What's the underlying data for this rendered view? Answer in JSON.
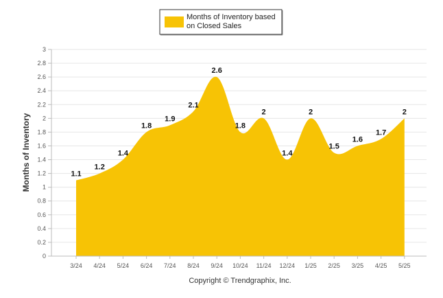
{
  "legend": {
    "line1": "Months of Inventory based",
    "line2": "on Closed Sales"
  },
  "footer": {
    "copyright": "Copyright © Trendgraphix, Inc."
  },
  "colors": {
    "series_fill": "#f7c305",
    "grid": "#e6e6e6",
    "axis": "#bbbbbb"
  },
  "chart_data": {
    "type": "area",
    "ylabel": "Months of Inventory",
    "xlabel": "",
    "ylim": [
      0,
      3
    ],
    "yticks": [
      "0",
      "0.2",
      "0.4",
      "0.6",
      "0.8",
      "1",
      "1.2",
      "1.4",
      "1.6",
      "1.8",
      "2",
      "2.2",
      "2.4",
      "2.6",
      "2.8",
      "3"
    ],
    "grid": true,
    "legend_position": "top-center",
    "categories": [
      "3/24",
      "4/24",
      "5/24",
      "6/24",
      "7/24",
      "8/24",
      "9/24",
      "10/24",
      "11/24",
      "12/24",
      "1/25",
      "2/25",
      "3/25",
      "4/25",
      "5/25"
    ],
    "series": [
      {
        "name": "Months of Inventory based on Closed Sales",
        "values": [
          1.1,
          1.2,
          1.4,
          1.8,
          1.9,
          2.1,
          2.6,
          1.8,
          2,
          1.4,
          2,
          1.5,
          1.6,
          1.7,
          2
        ],
        "labels": [
          "1.1",
          "1.2",
          "1.4",
          "1.8",
          "1.9",
          "2.1",
          "2.6",
          "1.8",
          "2",
          "1.4",
          "2",
          "1.5",
          "1.6",
          "1.7",
          "2"
        ]
      }
    ]
  }
}
